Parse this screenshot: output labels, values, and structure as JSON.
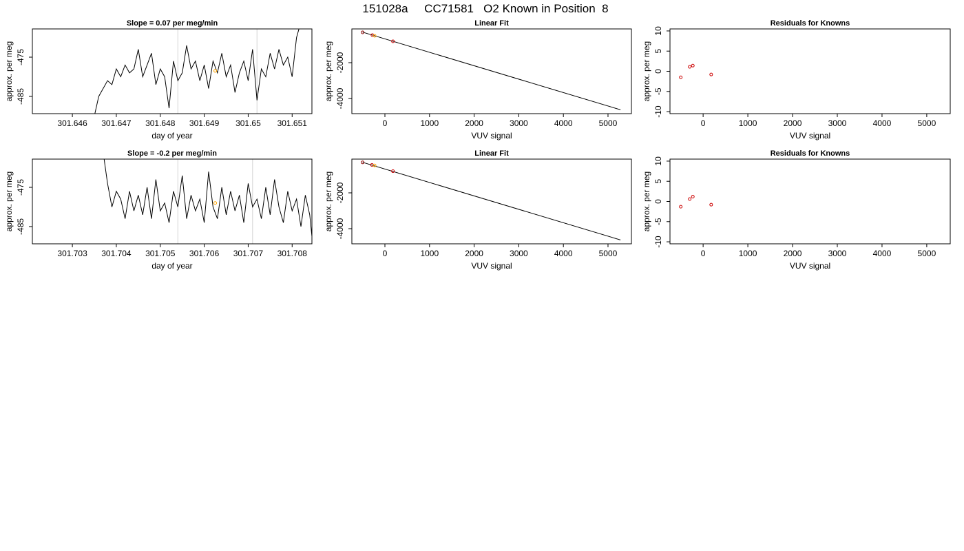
{
  "title": "151028a     CC71581   O2 Known in Position  8",
  "chart_data": [
    {
      "type": "line",
      "title": "Slope =  0.07  per meg/min",
      "xlabel": "day of year",
      "ylabel": "approx. per meg",
      "xlim": [
        301.64509,
        301.65145
      ],
      "ylim": [
        -489.4,
        -467.8
      ],
      "xticks": [
        301.646,
        301.647,
        301.648,
        301.649,
        301.65,
        301.651
      ],
      "yticks": [
        -475,
        -485
      ],
      "line": {
        "color": "#000000",
        "x": [
          301.6465,
          301.6466,
          301.6467,
          301.6468,
          301.6469,
          301.647,
          301.6471,
          301.6472,
          301.6473,
          301.6474,
          301.6475,
          301.6476,
          301.6477,
          301.6478,
          301.6479,
          301.648,
          301.6481,
          301.6482,
          301.6483,
          301.6484,
          301.6485,
          301.6486,
          301.6487,
          301.6488,
          301.6489,
          301.649,
          301.6491,
          301.6492,
          301.6493,
          301.6494,
          301.6495,
          301.6496,
          301.6497,
          301.6498,
          301.6499,
          301.65,
          301.6501,
          301.6502,
          301.6503,
          301.6504,
          301.6505,
          301.6506,
          301.6507,
          301.6508,
          301.6509,
          301.651,
          301.6511,
          301.6512
        ],
        "y": [
          -490,
          -485,
          -483,
          -481,
          -482,
          -478,
          -480,
          -477,
          -479,
          -478,
          -473,
          -480,
          -477,
          -474,
          -482,
          -478,
          -480,
          -488,
          -476,
          -481,
          -479,
          -472,
          -478,
          -476,
          -481,
          -477,
          -483,
          -476,
          -479,
          -474,
          -480,
          -477,
          -484,
          -479,
          -476,
          -481,
          -473,
          -486,
          -478,
          -480,
          -474,
          -478,
          -473,
          -477,
          -475,
          -480,
          -470,
          -466
        ]
      },
      "vlines": [
        301.6484,
        301.6502
      ],
      "vline_color": "#d3d3d3",
      "points": [
        {
          "x": 301.64925,
          "y": -478.5,
          "color": "#ffa500"
        }
      ]
    },
    {
      "type": "scatter",
      "title": "Linear Fit",
      "xlabel": "VUV signal",
      "ylabel": "approx. per meg",
      "xlim": [
        -741,
        5525
      ],
      "ylim": [
        -4846,
        -115
      ],
      "xticks": [
        0,
        1000,
        2000,
        3000,
        4000,
        5000
      ],
      "yticks": [
        -2000,
        -4000
      ],
      "fit_line": {
        "x": [
          -500,
          5280
        ],
        "y": [
          -295,
          -4630
        ],
        "color": "#000000"
      },
      "points": [
        {
          "x": -500,
          "y": -308,
          "color": "#8b0000"
        },
        {
          "x": -280,
          "y": -462,
          "color": "#cc0000"
        },
        {
          "x": -230,
          "y": -500,
          "color": "#ffa500"
        },
        {
          "x": 180,
          "y": -808,
          "color": "#cc0000"
        }
      ]
    },
    {
      "type": "scatter",
      "title": "Residuals for Knowns",
      "xlabel": "VUV signal",
      "ylabel": "approx. per meg",
      "xlim": [
        -741,
        5525
      ],
      "ylim": [
        -10.5,
        10.5
      ],
      "xticks": [
        0,
        1000,
        2000,
        3000,
        4000,
        5000
      ],
      "yticks": [
        -10,
        -5,
        0,
        5,
        10
      ],
      "points": [
        {
          "x": -500,
          "y": -1.5,
          "color": "#cc0000"
        },
        {
          "x": -300,
          "y": 1.1,
          "color": "#cc0000"
        },
        {
          "x": -230,
          "y": 1.4,
          "color": "#cc0000"
        },
        {
          "x": 180,
          "y": -0.8,
          "color": "#cc0000"
        }
      ]
    },
    {
      "type": "line",
      "title": "Slope =  -0.2  per meg/min",
      "xlabel": "day of year",
      "ylabel": "approx. per meg",
      "xlim": [
        301.70209,
        301.70845
      ],
      "ylim": [
        -489.4,
        -467.8
      ],
      "xticks": [
        301.703,
        301.704,
        301.705,
        301.706,
        301.707,
        301.708
      ],
      "yticks": [
        -475,
        -485
      ],
      "line": {
        "color": "#000000",
        "x": [
          301.7037,
          301.7038,
          301.7039,
          301.704,
          301.7041,
          301.7042,
          301.7043,
          301.7044,
          301.7045,
          301.7046,
          301.7047,
          301.7048,
          301.7049,
          301.705,
          301.7051,
          301.7052,
          301.7053,
          301.7054,
          301.7055,
          301.7056,
          301.7057,
          301.7058,
          301.7059,
          301.706,
          301.7061,
          301.7062,
          301.7063,
          301.7064,
          301.7065,
          301.7066,
          301.7067,
          301.7068,
          301.7069,
          301.707,
          301.7071,
          301.7072,
          301.7073,
          301.7074,
          301.7075,
          301.7076,
          301.7077,
          301.7078,
          301.7079,
          301.708,
          301.7081,
          301.7082,
          301.7083,
          301.7084,
          301.7085
        ],
        "y": [
          -466,
          -474,
          -480,
          -476,
          -478,
          -483,
          -476,
          -481,
          -477,
          -482,
          -475,
          -483,
          -473,
          -481,
          -479,
          -484,
          -476,
          -480,
          -472,
          -483,
          -477,
          -481,
          -478,
          -484,
          -471,
          -480,
          -483,
          -475,
          -482,
          -476,
          -481,
          -477,
          -484,
          -474,
          -480,
          -478,
          -483,
          -475,
          -482,
          -473,
          -480,
          -484,
          -476,
          -481,
          -478,
          -485,
          -477,
          -482,
          -493
        ]
      },
      "vlines": [
        301.7054,
        301.7071
      ],
      "vline_color": "#d3d3d3",
      "points": [
        {
          "x": 301.70625,
          "y": -479,
          "color": "#ffa500"
        }
      ]
    },
    {
      "type": "scatter",
      "title": "Linear Fit",
      "xlabel": "VUV signal",
      "ylabel": "approx. per meg",
      "xlim": [
        -741,
        5525
      ],
      "ylim": [
        -4846,
        -115
      ],
      "xticks": [
        0,
        1000,
        2000,
        3000,
        4000,
        5000
      ],
      "yticks": [
        -2000,
        -4000
      ],
      "fit_line": {
        "x": [
          -500,
          5280
        ],
        "y": [
          -295,
          -4630
        ],
        "color": "#000000"
      },
      "points": [
        {
          "x": -500,
          "y": -300,
          "color": "#8b0000"
        },
        {
          "x": -290,
          "y": -440,
          "color": "#cc0000"
        },
        {
          "x": -230,
          "y": -470,
          "color": "#ffa500"
        },
        {
          "x": 180,
          "y": -790,
          "color": "#cc0000"
        }
      ]
    },
    {
      "type": "scatter",
      "title": "Residuals for Knowns",
      "xlabel": "VUV signal",
      "ylabel": "approx. per meg",
      "xlim": [
        -741,
        5525
      ],
      "ylim": [
        -10.5,
        10.5
      ],
      "xticks": [
        0,
        1000,
        2000,
        3000,
        4000,
        5000
      ],
      "yticks": [
        -10,
        -5,
        0,
        5,
        10
      ],
      "points": [
        {
          "x": -500,
          "y": -1.3,
          "color": "#cc0000"
        },
        {
          "x": -300,
          "y": 0.6,
          "color": "#cc0000"
        },
        {
          "x": -230,
          "y": 1.2,
          "color": "#cc0000"
        },
        {
          "x": 180,
          "y": -0.8,
          "color": "#cc0000"
        }
      ]
    }
  ]
}
